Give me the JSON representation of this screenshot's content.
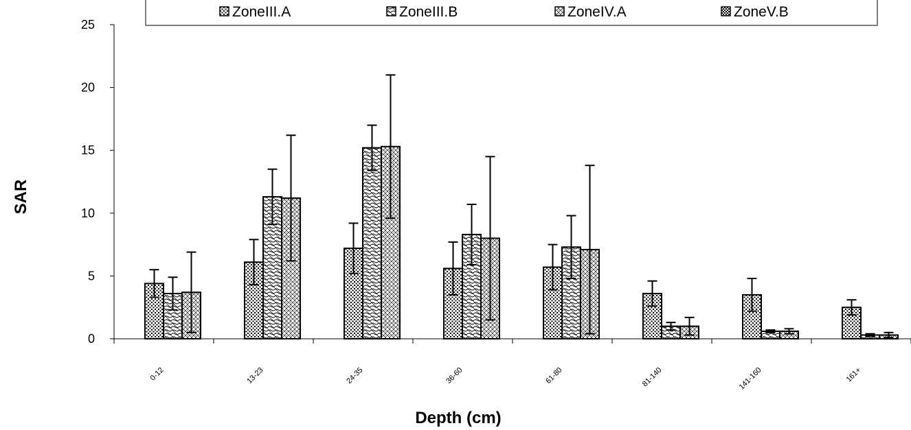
{
  "chart_data": {
    "type": "bar",
    "categories": [
      "0-12",
      "13-23",
      "24-35",
      "36-60",
      "61-80",
      "81-140",
      "141-160",
      "161+"
    ],
    "series": [
      {
        "name": "ZoneIII.A",
        "values": [
          4.4,
          6.1,
          7.2,
          5.6,
          5.7,
          3.6,
          3.5,
          2.5
        ],
        "errors": [
          1.1,
          1.8,
          2.0,
          2.1,
          1.8,
          1.0,
          1.3,
          0.6
        ],
        "pattern": "dots"
      },
      {
        "name": "ZoneIII.B",
        "values": [
          3.6,
          11.3,
          15.2,
          8.3,
          7.3,
          1.0,
          0.6,
          0.3
        ],
        "errors": [
          1.3,
          2.2,
          1.8,
          2.4,
          2.5,
          0.3,
          0.1,
          0.1
        ],
        "pattern": "waves"
      },
      {
        "name": "ZoneIV.A",
        "values": [
          3.7,
          11.2,
          15.3,
          8.0,
          7.1,
          1.0,
          0.6,
          0.3
        ],
        "errors": [
          3.2,
          5.0,
          5.7,
          6.5,
          6.7,
          0.7,
          0.2,
          0.2
        ],
        "pattern": "diamonds"
      },
      {
        "name": "ZoneV.B",
        "values": [
          0,
          0,
          0,
          0,
          0,
          0,
          0,
          0
        ],
        "errors": [
          0,
          0,
          0,
          0,
          0,
          0,
          0,
          0
        ],
        "pattern": "checker"
      }
    ],
    "xlabel": "Depth (cm)",
    "ylabel": "SAR",
    "ylim": [
      0,
      25
    ],
    "yticks": [
      0,
      5,
      10,
      15,
      20,
      25
    ],
    "grid": false,
    "legend_position": "top"
  },
  "legend": {
    "items": [
      "ZoneIII.A",
      "ZoneIII.B",
      "ZoneIV.A",
      "ZoneV.B"
    ]
  }
}
